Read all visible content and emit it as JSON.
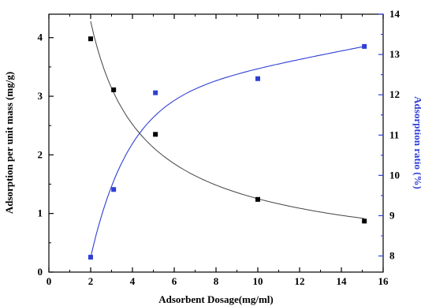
{
  "chart_data": {
    "type": "scatter",
    "xlabel": "Adsorbent Dosage(mg/ml)",
    "ylabel": "Adsorption per unit mass (mg/g)",
    "ylabel_right": "Adsorption ratio (%)",
    "xlim": [
      0,
      16
    ],
    "ylim": [
      0,
      4.4
    ],
    "ylim_right": [
      7.6,
      14
    ],
    "x_ticks": [
      "0",
      "2",
      "4",
      "6",
      "8",
      "10",
      "12",
      "14",
      "16"
    ],
    "y_ticks": [
      "0",
      "1",
      "2",
      "3",
      "4"
    ],
    "y_ticks_right": [
      "8",
      "9",
      "10",
      "11",
      "12",
      "13",
      "14"
    ],
    "grid": false,
    "series": [
      {
        "axis": "left",
        "color": "#000000",
        "marker": "square",
        "x": [
          2,
          3.1,
          5.1,
          10,
          15.1
        ],
        "y": [
          3.98,
          3.11,
          2.35,
          1.24,
          0.87
        ],
        "fit_curve": true
      },
      {
        "axis": "right",
        "color": "#2f3fd6",
        "marker": "square",
        "x": [
          2,
          3.1,
          5.1,
          10,
          15.1
        ],
        "y": [
          7.97,
          9.65,
          12.05,
          12.4,
          13.2
        ],
        "fit_curve": true
      }
    ]
  }
}
